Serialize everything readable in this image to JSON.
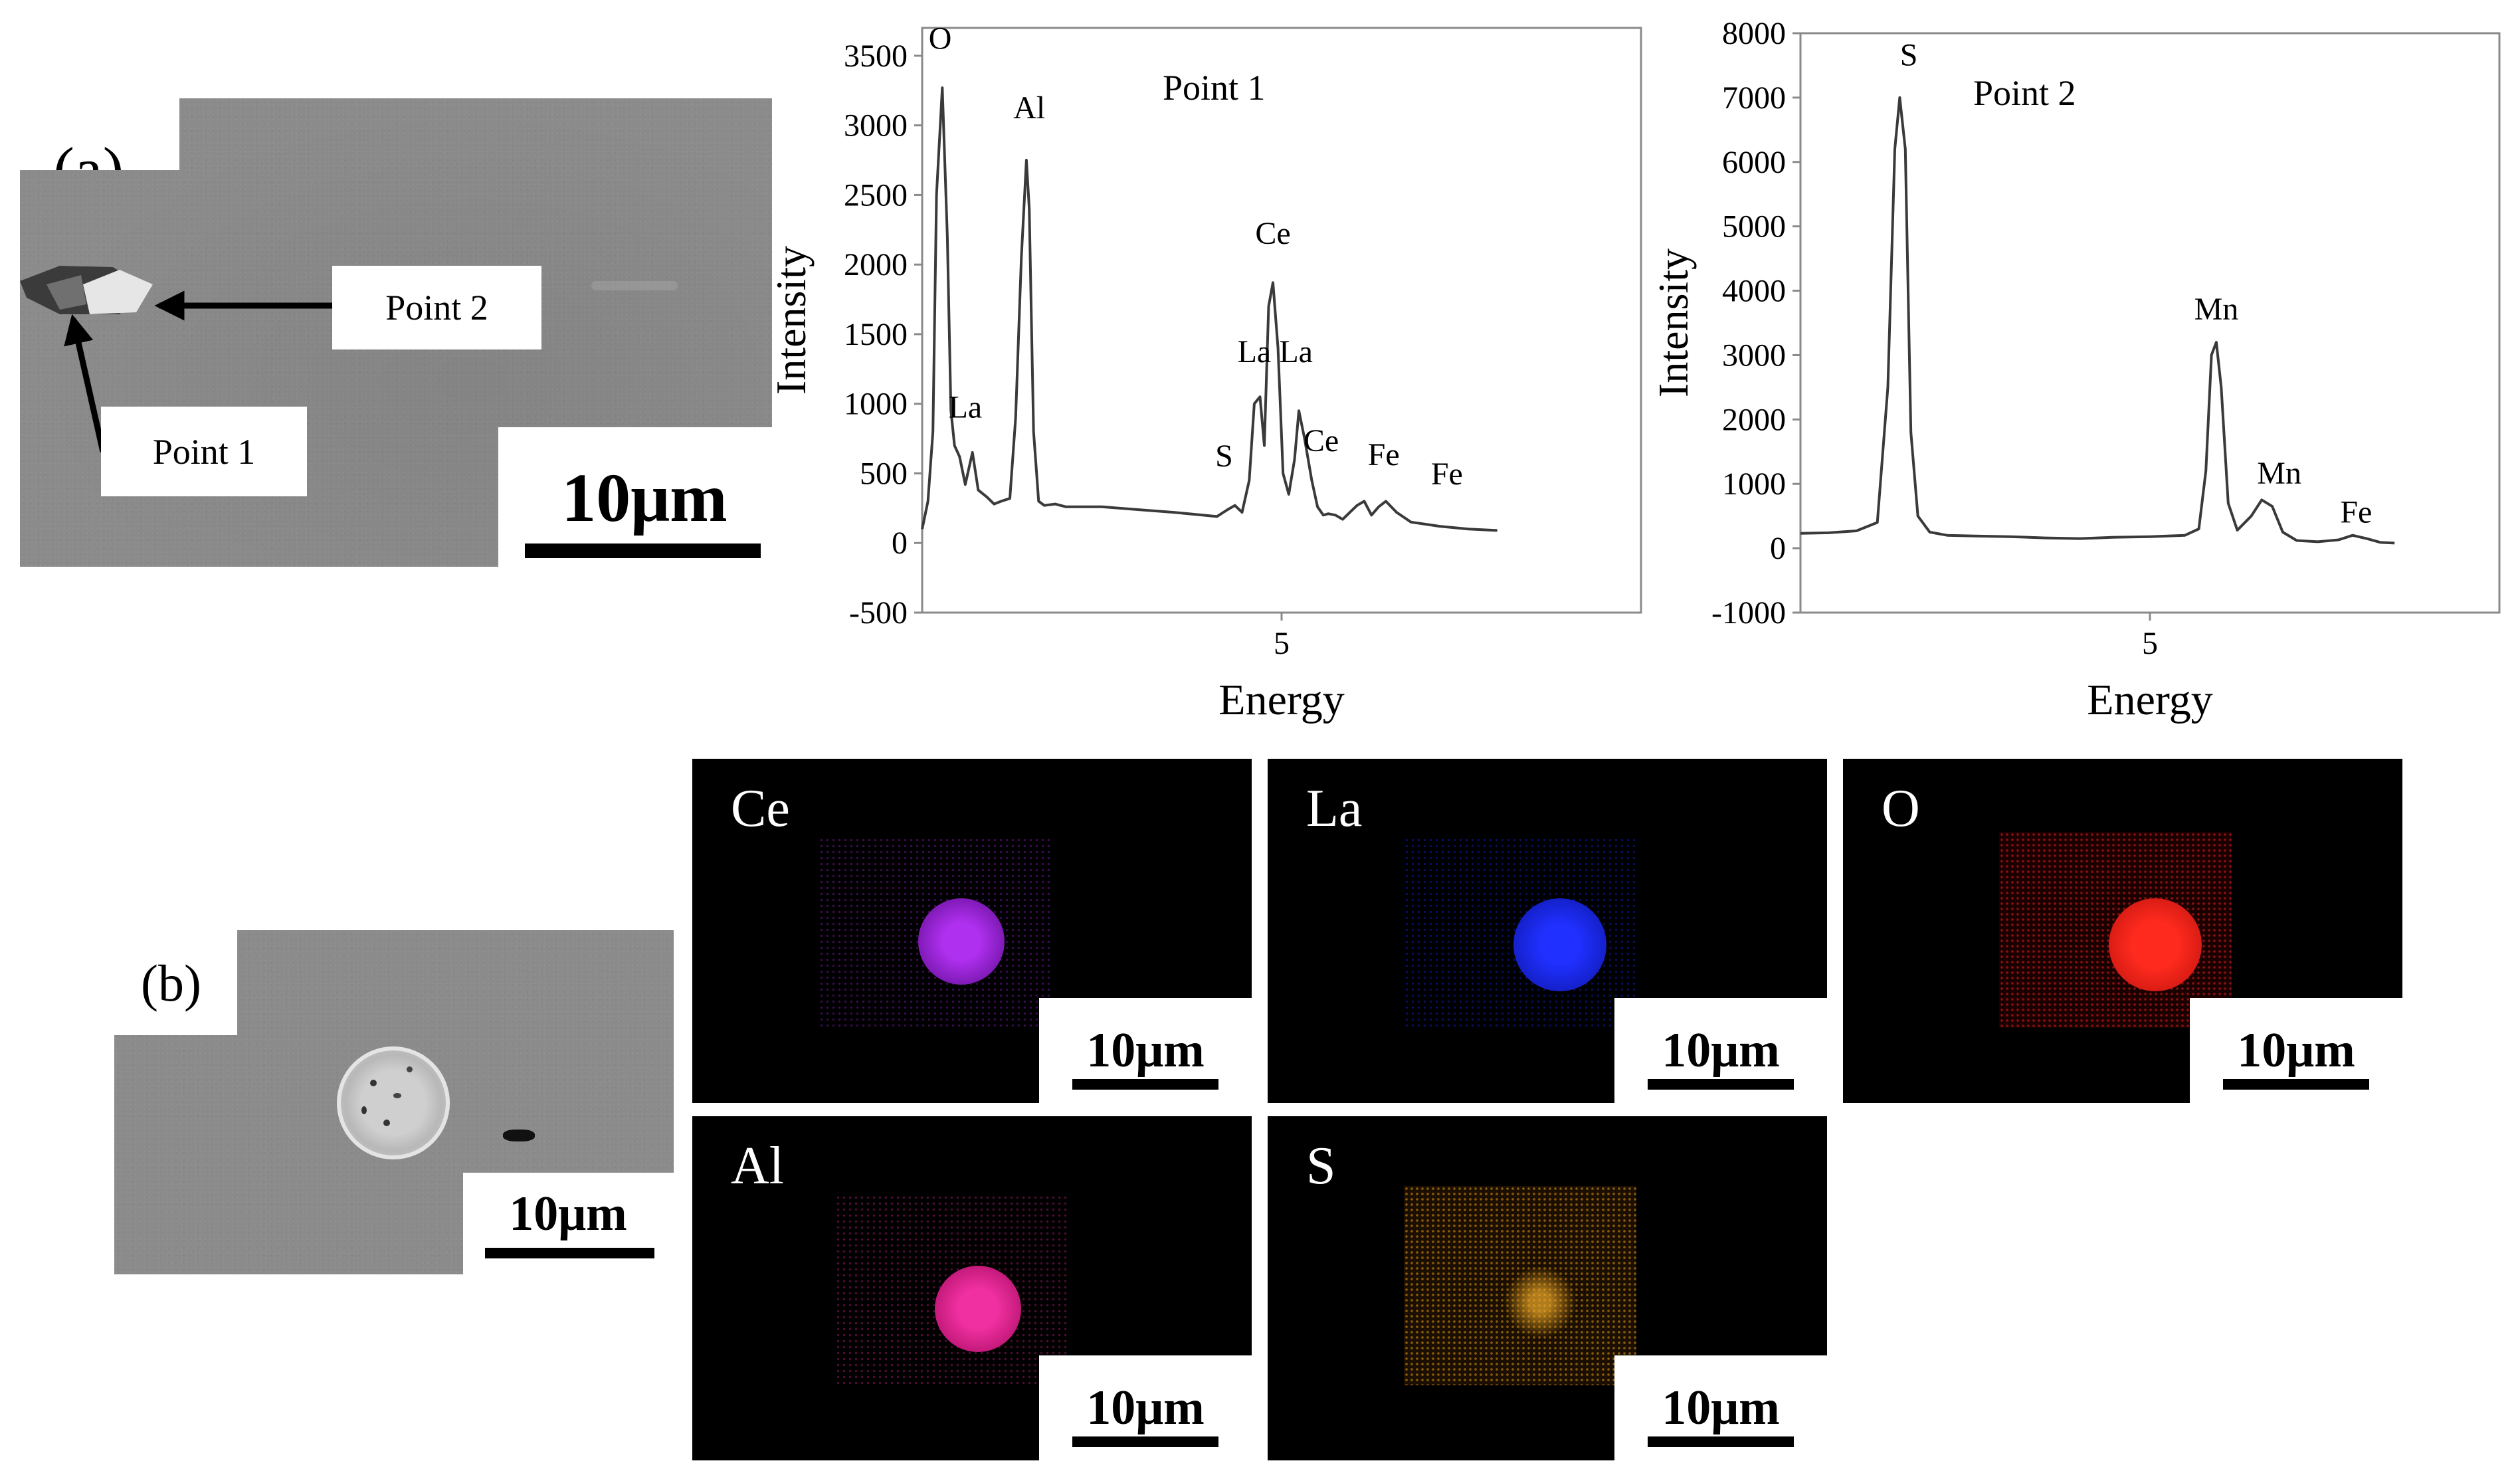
{
  "panel_a": {
    "label": "(a)",
    "image": {
      "callouts": {
        "point2": "Point 2",
        "point1": "Point 1"
      },
      "scalebar": "10μm"
    },
    "charts": [
      {
        "name": "Point 1",
        "title": "Point 1",
        "xlabel": "Energy",
        "ylabel": "Intensity",
        "yticks": [
          "3500",
          "3000",
          "2500",
          "2000",
          "1500",
          "1000",
          "500",
          "0",
          "-500"
        ],
        "xtick": "5",
        "peaks": [
          "O",
          "Al",
          "La",
          "Ce",
          "La",
          "La",
          "S",
          "Ce",
          "Fe",
          "Fe"
        ]
      },
      {
        "name": "Point 2",
        "title": "Point 2",
        "xlabel": "Energy",
        "ylabel": "Intensity",
        "yticks": [
          "8000",
          "7000",
          "6000",
          "5000",
          "4000",
          "3000",
          "2000",
          "1000",
          "0",
          "-1000"
        ],
        "xtick": "5",
        "peaks": [
          "S",
          "Mn",
          "Mn",
          "Fe"
        ]
      }
    ]
  },
  "panel_b": {
    "label": "(b)",
    "image": {
      "scalebar": "10μm"
    },
    "maps": [
      {
        "element": "Ce",
        "scalebar": "10μm",
        "color": "#a021e0"
      },
      {
        "element": "La",
        "scalebar": "10μm",
        "color": "#1622e8"
      },
      {
        "element": "O",
        "scalebar": "10μm",
        "color": "#e0201a"
      },
      {
        "element": "Al",
        "scalebar": "10μm",
        "color": "#e0248e"
      },
      {
        "element": "S",
        "scalebar": "10μm",
        "color": "#d98a10"
      }
    ]
  },
  "chart_data": [
    {
      "type": "line",
      "title": "Point 1",
      "xlabel": "Energy",
      "ylabel": "Intensity",
      "ylim": [
        -500,
        3700
      ],
      "xlim": [
        0,
        10
      ],
      "x_ticks": [
        5
      ],
      "y_ticks": [
        -500,
        0,
        500,
        1000,
        1500,
        2000,
        2500,
        3000,
        3500
      ],
      "series": [
        {
          "x": [
            0.0,
            0.08,
            0.15,
            0.2,
            0.28,
            0.35,
            0.4,
            0.45,
            0.52,
            0.6,
            0.7,
            0.78,
            0.9,
            1.0,
            1.1,
            1.22,
            1.3,
            1.38,
            1.45,
            1.49,
            1.55,
            1.62,
            1.7,
            1.85,
            2.0,
            2.5,
            3.0,
            3.5,
            3.9,
            4.1,
            4.25,
            4.35,
            4.45,
            4.55,
            4.62,
            4.7,
            4.76,
            4.82,
            4.88,
            4.95,
            5.02,
            5.1,
            5.18,
            5.24,
            5.32,
            5.42,
            5.5,
            5.58,
            5.65,
            5.75,
            5.85,
            5.95,
            6.05,
            6.15,
            6.25,
            6.35,
            6.45,
            6.6,
            6.8,
            7.2,
            7.6,
            8.0
          ],
          "y": [
            100,
            300,
            800,
            2500,
            3270,
            2200,
            950,
            700,
            620,
            420,
            650,
            380,
            330,
            280,
            300,
            320,
            900,
            2050,
            2750,
            2400,
            800,
            300,
            270,
            280,
            260,
            260,
            240,
            220,
            200,
            190,
            240,
            270,
            220,
            450,
            1000,
            1050,
            700,
            1700,
            1870,
            1400,
            500,
            350,
            600,
            950,
            750,
            450,
            260,
            200,
            210,
            200,
            170,
            220,
            270,
            300,
            200,
            260,
            300,
            220,
            150,
            120,
            100,
            90
          ]
        }
      ],
      "annotations": [
        "O",
        "Al",
        "La",
        "Ce",
        "La",
        "La",
        "S",
        "Ce",
        "Fe",
        "Fe"
      ]
    },
    {
      "type": "line",
      "title": "Point 2",
      "xlabel": "Energy",
      "ylabel": "Intensity",
      "ylim": [
        -1000,
        8000
      ],
      "xlim": [
        0,
        10
      ],
      "x_ticks": [
        5
      ],
      "y_ticks": [
        -1000,
        0,
        1000,
        2000,
        3000,
        4000,
        5000,
        6000,
        7000,
        8000
      ],
      "series": [
        {
          "x": [
            0.0,
            0.4,
            0.8,
            1.1,
            1.25,
            1.35,
            1.42,
            1.5,
            1.58,
            1.68,
            1.85,
            2.1,
            2.5,
            3.0,
            3.5,
            4.0,
            4.5,
            5.0,
            5.5,
            5.7,
            5.8,
            5.88,
            5.95,
            6.02,
            6.12,
            6.25,
            6.45,
            6.6,
            6.75,
            6.9,
            7.1,
            7.4,
            7.7,
            7.9,
            8.1,
            8.3,
            8.5
          ],
          "y": [
            230,
            240,
            270,
            400,
            2500,
            6200,
            7000,
            6200,
            1800,
            500,
            250,
            200,
            190,
            180,
            160,
            150,
            170,
            180,
            200,
            300,
            1200,
            3000,
            3200,
            2500,
            700,
            280,
            500,
            750,
            650,
            250,
            120,
            100,
            130,
            200,
            150,
            90,
            80
          ]
        }
      ],
      "annotations": [
        "S",
        "Mn",
        "Mn",
        "Fe"
      ]
    }
  ]
}
